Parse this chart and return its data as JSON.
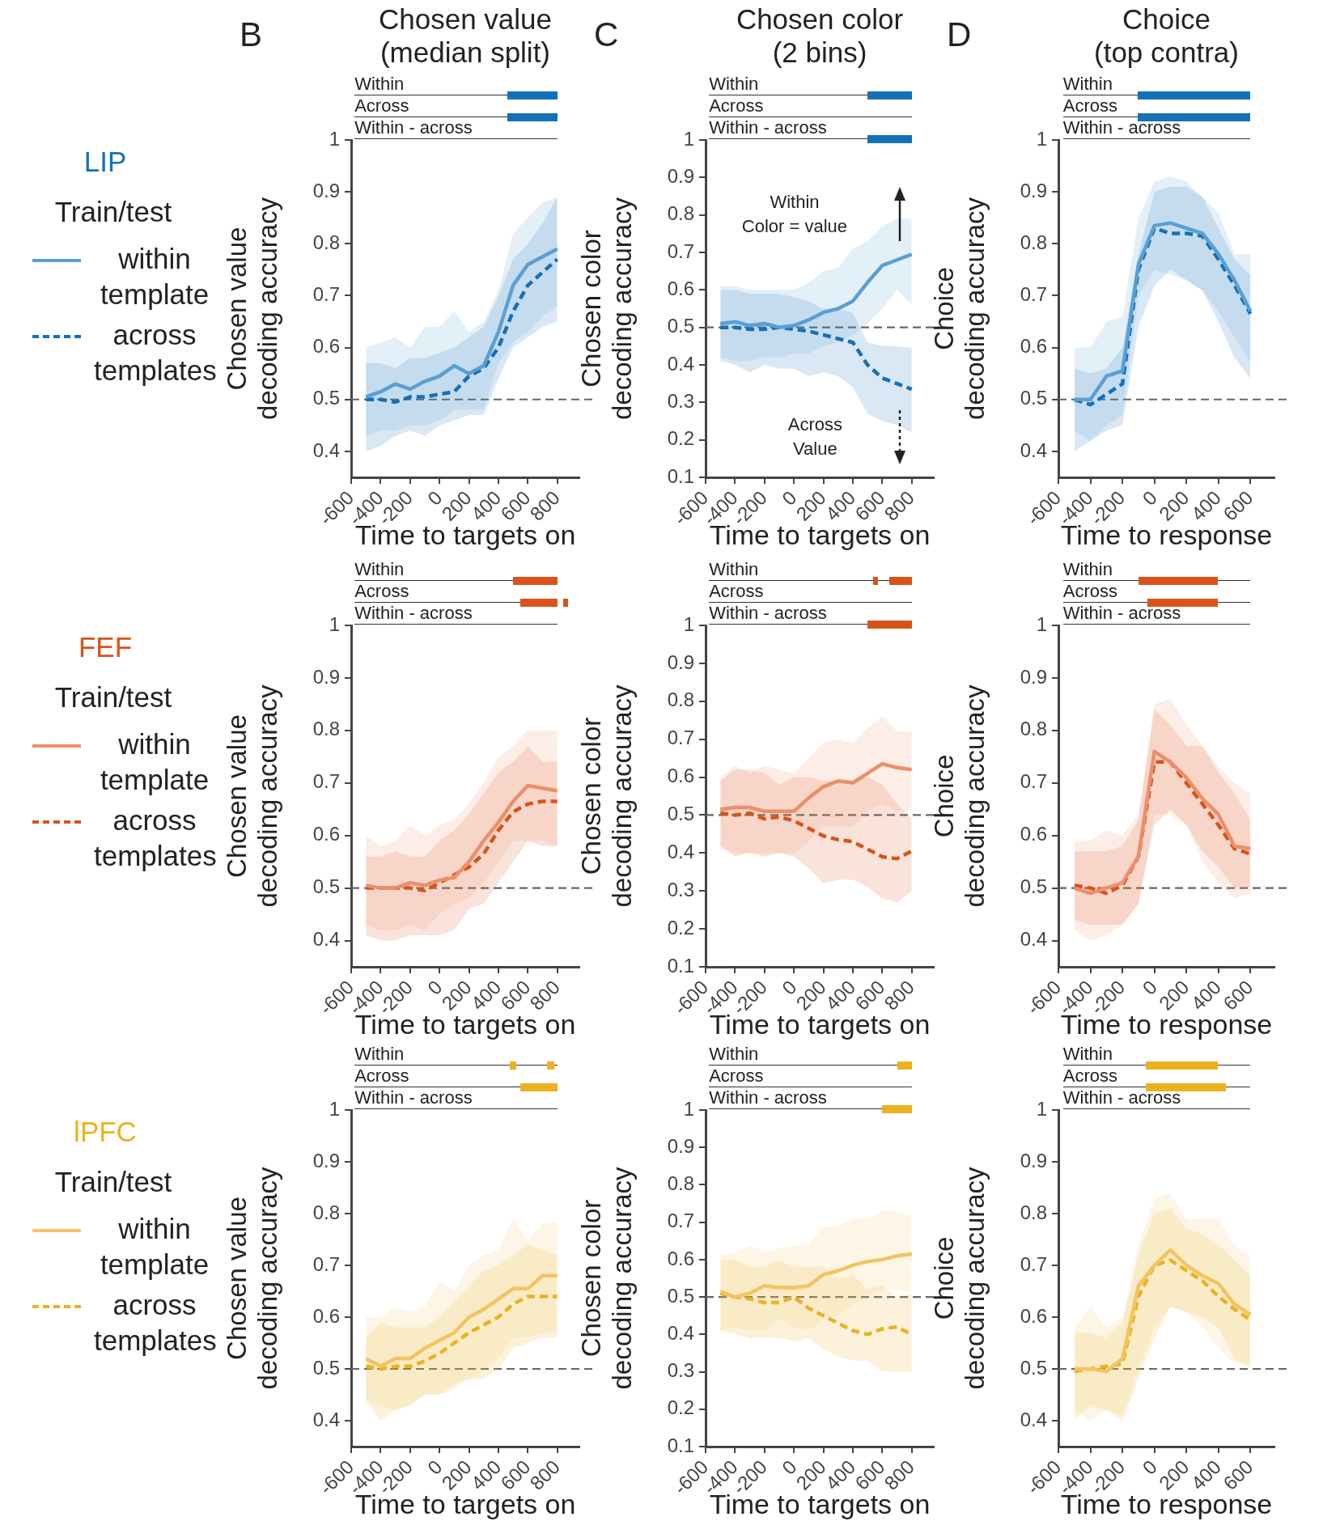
{
  "chart_data": [
    {
      "type": "line",
      "title": "Chosen value (median split)",
      "legend_title": "Train/test",
      "legend": "left",
      "annotations": [
        "B",
        "LIP",
        "Within",
        "Across",
        "Within - across"
      ],
      "xlabel": "Time to targets on",
      "ylabel": "Chosen value decoding accuracy",
      "marker": "none",
      "x": [
        -500,
        -400,
        -300,
        -200,
        -100,
        0,
        100,
        200,
        300,
        400,
        500,
        600,
        700,
        800
      ],
      "xlim": [
        -600,
        950
      ],
      "xticks": [
        -600,
        -400,
        -200,
        0,
        200,
        400,
        600,
        800
      ],
      "ylim": [
        0.35,
        1
      ],
      "yticks": [
        0.4,
        0.5,
        0.6,
        0.7,
        0.8,
        0.9,
        1
      ],
      "ref_lines": [
        {
          "axis": "y",
          "value": 0.5,
          "color": "#666666",
          "line_style": "dashed"
        }
      ],
      "series": [
        {
          "name": "within template",
          "color": "#5a9fd4",
          "line_style": "solid",
          "values": [
            0.505,
            0.515,
            0.53,
            0.52,
            0.535,
            0.545,
            0.565,
            0.55,
            0.565,
            0.63,
            0.72,
            0.76,
            0.775,
            0.79
          ],
          "upper": [
            0.6,
            0.61,
            0.62,
            0.6,
            0.64,
            0.64,
            0.67,
            0.63,
            0.65,
            0.71,
            0.82,
            0.85,
            0.88,
            0.89
          ],
          "lower": [
            0.43,
            0.44,
            0.44,
            0.45,
            0.45,
            0.46,
            0.48,
            0.48,
            0.48,
            0.57,
            0.61,
            0.63,
            0.66,
            0.68
          ]
        },
        {
          "name": "across templates",
          "color": "#1470b8",
          "line_style": "dashed",
          "values": [
            0.5,
            0.5,
            0.495,
            0.505,
            0.505,
            0.51,
            0.515,
            0.545,
            0.56,
            0.6,
            0.67,
            0.72,
            0.745,
            0.77
          ],
          "upper": [
            0.57,
            0.57,
            0.56,
            0.58,
            0.58,
            0.59,
            0.6,
            0.62,
            0.64,
            0.7,
            0.77,
            0.8,
            0.84,
            0.89
          ],
          "lower": [
            0.4,
            0.41,
            0.43,
            0.44,
            0.43,
            0.45,
            0.46,
            0.47,
            0.47,
            0.54,
            0.6,
            0.62,
            0.64,
            0.65
          ]
        }
      ]
    },
    {
      "type": "line",
      "title": "Chosen color (2 bins)",
      "annotations": [
        "C",
        "Within",
        "Across",
        "Within - across",
        "Within\nColor = value",
        "Across\nValue"
      ],
      "xlabel": "Time to targets on",
      "ylabel": "Chosen color decoding accuracy",
      "marker": "none",
      "x": [
        -500,
        -400,
        -300,
        -200,
        -100,
        0,
        100,
        200,
        300,
        400,
        500,
        600,
        700,
        800
      ],
      "xlim": [
        -600,
        950
      ],
      "xticks": [
        -600,
        -400,
        -200,
        0,
        200,
        400,
        600,
        800
      ],
      "ylim": [
        0.1,
        1
      ],
      "yticks": [
        0.1,
        0.2,
        0.3,
        0.4,
        0.5,
        0.6,
        0.7,
        0.8,
        0.9,
        1
      ],
      "ref_lines": [
        {
          "axis": "y",
          "value": 0.5,
          "color": "#666666",
          "line_style": "dashed"
        }
      ],
      "series": [
        {
          "color": "#5a9fd4",
          "line_style": "solid",
          "values": [
            0.51,
            0.515,
            0.505,
            0.51,
            0.5,
            0.505,
            0.52,
            0.54,
            0.55,
            0.57,
            0.62,
            0.665,
            0.68,
            0.695
          ],
          "upper": [
            0.61,
            0.61,
            0.6,
            0.6,
            0.6,
            0.6,
            0.62,
            0.65,
            0.66,
            0.71,
            0.73,
            0.77,
            0.79,
            0.79
          ],
          "lower": [
            0.42,
            0.41,
            0.41,
            0.42,
            0.42,
            0.43,
            0.43,
            0.45,
            0.46,
            0.48,
            0.51,
            0.55,
            0.6,
            0.56
          ]
        },
        {
          "color": "#1470b8",
          "line_style": "dashed",
          "values": [
            0.5,
            0.5,
            0.495,
            0.495,
            0.5,
            0.495,
            0.49,
            0.48,
            0.47,
            0.46,
            0.4,
            0.365,
            0.35,
            0.335
          ],
          "upper": [
            0.6,
            0.6,
            0.59,
            0.59,
            0.59,
            0.58,
            0.57,
            0.55,
            0.55,
            0.54,
            0.46,
            0.45,
            0.45,
            0.445
          ],
          "lower": [
            0.41,
            0.4,
            0.38,
            0.4,
            0.39,
            0.39,
            0.37,
            0.38,
            0.37,
            0.34,
            0.27,
            0.25,
            0.24,
            0.22
          ]
        }
      ]
    },
    {
      "type": "line",
      "title": "Choice (top contra)",
      "annotations": [
        "D",
        "Within",
        "Across",
        "Within - across"
      ],
      "xlabel": "Time to response",
      "ylabel": "Choice decoding accuracy",
      "marker": "none",
      "x": [
        -500,
        -400,
        -300,
        -200,
        -100,
        0,
        100,
        200,
        300,
        400,
        500,
        600
      ],
      "xlim": [
        -600,
        750
      ],
      "xticks": [
        -600,
        -400,
        -200,
        0,
        200,
        400,
        600
      ],
      "ylim": [
        0.35,
        1
      ],
      "yticks": [
        0.4,
        0.5,
        0.6,
        0.7,
        0.8,
        0.9,
        1
      ],
      "ref_lines": [
        {
          "axis": "y",
          "value": 0.5,
          "color": "#666666",
          "line_style": "dashed"
        }
      ],
      "series": [
        {
          "color": "#5a9fd4",
          "line_style": "solid",
          "values": [
            0.5,
            0.5,
            0.545,
            0.555,
            0.76,
            0.835,
            0.84,
            0.83,
            0.82,
            0.78,
            0.73,
            0.67
          ],
          "upper": [
            0.6,
            0.6,
            0.65,
            0.66,
            0.85,
            0.92,
            0.93,
            0.92,
            0.89,
            0.86,
            0.78,
            0.78
          ],
          "lower": [
            0.44,
            0.42,
            0.45,
            0.47,
            0.7,
            0.75,
            0.74,
            0.73,
            0.71,
            0.67,
            0.62,
            0.57
          ]
        },
        {
          "color": "#1470b8",
          "line_style": "dashed",
          "values": [
            0.5,
            0.49,
            0.51,
            0.53,
            0.75,
            0.83,
            0.82,
            0.82,
            0.815,
            0.77,
            0.72,
            0.665
          ],
          "upper": [
            0.56,
            0.55,
            0.56,
            0.6,
            0.78,
            0.9,
            0.91,
            0.91,
            0.89,
            0.83,
            0.77,
            0.74
          ],
          "lower": [
            0.4,
            0.42,
            0.44,
            0.45,
            0.64,
            0.72,
            0.75,
            0.73,
            0.71,
            0.65,
            0.58,
            0.54
          ]
        }
      ]
    },
    {
      "type": "line",
      "legend_title": "Train/test",
      "legend": "left",
      "annotations": [
        "FEF",
        "Within",
        "Across",
        "Within - across"
      ],
      "xlabel": "Time to targets on",
      "ylabel": "Chosen value decoding accuracy",
      "marker": "none",
      "x": [
        -500,
        -400,
        -300,
        -200,
        -100,
        0,
        100,
        200,
        300,
        400,
        500,
        600,
        700,
        800
      ],
      "xlim": [
        -600,
        950
      ],
      "xticks": [
        -600,
        -400,
        -200,
        0,
        200,
        400,
        600,
        800
      ],
      "ylim": [
        0.35,
        1
      ],
      "yticks": [
        0.4,
        0.5,
        0.6,
        0.7,
        0.8,
        0.9,
        1
      ],
      "ref_lines": [
        {
          "axis": "y",
          "value": 0.5,
          "color": "#666666",
          "line_style": "dashed"
        }
      ],
      "series": [
        {
          "name": "within template",
          "color": "#eb8f6a",
          "line_style": "solid",
          "values": [
            0.505,
            0.5,
            0.5,
            0.51,
            0.505,
            0.515,
            0.52,
            0.55,
            0.59,
            0.625,
            0.665,
            0.695,
            0.69,
            0.685
          ],
          "upper": [
            0.6,
            0.58,
            0.59,
            0.62,
            0.6,
            0.62,
            0.63,
            0.66,
            0.7,
            0.75,
            0.77,
            0.8,
            0.8,
            0.8
          ],
          "lower": [
            0.43,
            0.42,
            0.42,
            0.43,
            0.42,
            0.45,
            0.47,
            0.48,
            0.51,
            0.55,
            0.59,
            0.59,
            0.59,
            0.58
          ]
        },
        {
          "name": "across templates",
          "color": "#d95319",
          "line_style": "dashed",
          "values": [
            0.5,
            0.5,
            0.5,
            0.5,
            0.495,
            0.51,
            0.525,
            0.54,
            0.565,
            0.61,
            0.645,
            0.66,
            0.665,
            0.665
          ],
          "upper": [
            0.56,
            0.56,
            0.57,
            0.56,
            0.56,
            0.59,
            0.61,
            0.64,
            0.68,
            0.72,
            0.74,
            0.77,
            0.74,
            0.74
          ],
          "lower": [
            0.41,
            0.4,
            0.4,
            0.41,
            0.41,
            0.41,
            0.42,
            0.46,
            0.47,
            0.51,
            0.55,
            0.59,
            0.58,
            0.58
          ]
        }
      ]
    },
    {
      "type": "line",
      "annotations": [
        "Within",
        "Across",
        "Within - across"
      ],
      "xlabel": "Time to targets on",
      "ylabel": "Chosen color decoding accuracy",
      "marker": "none",
      "x": [
        -500,
        -400,
        -300,
        -200,
        -100,
        0,
        100,
        200,
        300,
        400,
        500,
        600,
        700,
        800
      ],
      "xlim": [
        -600,
        950
      ],
      "xticks": [
        -600,
        -400,
        -200,
        0,
        200,
        400,
        600,
        800
      ],
      "ylim": [
        0.1,
        1
      ],
      "yticks": [
        0.1,
        0.2,
        0.3,
        0.4,
        0.5,
        0.6,
        0.7,
        0.8,
        0.9,
        1
      ],
      "ref_lines": [
        {
          "axis": "y",
          "value": 0.5,
          "color": "#666666",
          "line_style": "dashed"
        }
      ],
      "series": [
        {
          "color": "#eb8f6a",
          "line_style": "solid",
          "values": [
            0.515,
            0.52,
            0.52,
            0.51,
            0.51,
            0.51,
            0.545,
            0.575,
            0.59,
            0.585,
            0.61,
            0.635,
            0.625,
            0.62
          ],
          "upper": [
            0.6,
            0.63,
            0.61,
            0.63,
            0.62,
            0.61,
            0.65,
            0.69,
            0.7,
            0.69,
            0.73,
            0.76,
            0.72,
            0.72
          ],
          "lower": [
            0.41,
            0.4,
            0.4,
            0.4,
            0.4,
            0.4,
            0.43,
            0.47,
            0.47,
            0.47,
            0.51,
            0.53,
            0.51,
            0.51
          ]
        },
        {
          "color": "#d95319",
          "line_style": "dashed",
          "values": [
            0.505,
            0.5,
            0.505,
            0.49,
            0.495,
            0.485,
            0.465,
            0.445,
            0.435,
            0.43,
            0.41,
            0.39,
            0.385,
            0.405
          ],
          "upper": [
            0.59,
            0.62,
            0.62,
            0.61,
            0.58,
            0.6,
            0.6,
            0.59,
            0.59,
            0.59,
            0.6,
            0.58,
            0.53,
            0.49
          ],
          "lower": [
            0.42,
            0.39,
            0.4,
            0.39,
            0.4,
            0.39,
            0.36,
            0.32,
            0.33,
            0.33,
            0.31,
            0.28,
            0.27,
            0.3
          ]
        }
      ]
    },
    {
      "type": "line",
      "annotations": [
        "Within",
        "Across",
        "Within - across"
      ],
      "xlabel": "Time to response",
      "ylabel": "Choice decoding accuracy",
      "marker": "none",
      "x": [
        -500,
        -400,
        -300,
        -200,
        -100,
        0,
        100,
        200,
        300,
        400,
        500,
        600
      ],
      "xlim": [
        -600,
        750
      ],
      "xticks": [
        -600,
        -400,
        -200,
        0,
        200,
        400,
        600
      ],
      "ylim": [
        0.35,
        1
      ],
      "yticks": [
        0.4,
        0.5,
        0.6,
        0.7,
        0.8,
        0.9,
        1
      ],
      "ref_lines": [
        {
          "axis": "y",
          "value": 0.5,
          "color": "#666666",
          "line_style": "dashed"
        }
      ],
      "series": [
        {
          "color": "#eb8f6a",
          "line_style": "solid",
          "values": [
            0.5,
            0.49,
            0.5,
            0.51,
            0.56,
            0.76,
            0.74,
            0.71,
            0.67,
            0.64,
            0.58,
            0.575
          ],
          "upper": [
            0.59,
            0.59,
            0.61,
            0.6,
            0.64,
            0.85,
            0.86,
            0.81,
            0.77,
            0.73,
            0.7,
            0.68
          ],
          "lower": [
            0.42,
            0.4,
            0.41,
            0.43,
            0.47,
            0.64,
            0.64,
            0.62,
            0.55,
            0.51,
            0.48,
            0.49
          ]
        },
        {
          "color": "#d95319",
          "line_style": "dashed",
          "values": [
            0.505,
            0.5,
            0.49,
            0.505,
            0.56,
            0.74,
            0.74,
            0.7,
            0.66,
            0.62,
            0.575,
            0.565
          ],
          "upper": [
            0.57,
            0.57,
            0.57,
            0.58,
            0.63,
            0.84,
            0.81,
            0.77,
            0.77,
            0.72,
            0.68,
            0.63
          ],
          "lower": [
            0.44,
            0.43,
            0.43,
            0.43,
            0.47,
            0.62,
            0.65,
            0.62,
            0.57,
            0.54,
            0.5,
            0.5
          ]
        }
      ]
    },
    {
      "type": "line",
      "legend_title": "Train/test",
      "legend": "left",
      "annotations": [
        "lPFC",
        "Within",
        "Across",
        "Within - across"
      ],
      "xlabel": "Time to targets on",
      "ylabel": "Chosen value decoding accuracy",
      "marker": "none",
      "x": [
        -500,
        -400,
        -300,
        -200,
        -100,
        0,
        100,
        200,
        300,
        400,
        500,
        600,
        700,
        800
      ],
      "xlim": [
        -600,
        950
      ],
      "xticks": [
        -600,
        -400,
        -200,
        0,
        200,
        400,
        600,
        800
      ],
      "ylim": [
        0.35,
        1
      ],
      "yticks": [
        0.4,
        0.5,
        0.6,
        0.7,
        0.8,
        0.9,
        1
      ],
      "ref_lines": [
        {
          "axis": "y",
          "value": 0.5,
          "color": "#666666",
          "line_style": "dashed"
        }
      ],
      "series": [
        {
          "name": "within template",
          "color": "#f2c461",
          "line_style": "solid",
          "values": [
            0.52,
            0.505,
            0.52,
            0.52,
            0.54,
            0.555,
            0.57,
            0.6,
            0.615,
            0.635,
            0.655,
            0.655,
            0.68,
            0.68
          ],
          "upper": [
            0.6,
            0.6,
            0.62,
            0.61,
            0.62,
            0.67,
            0.65,
            0.7,
            0.72,
            0.73,
            0.79,
            0.75,
            0.78,
            0.785
          ],
          "lower": [
            0.44,
            0.43,
            0.42,
            0.43,
            0.45,
            0.45,
            0.46,
            0.48,
            0.5,
            0.52,
            0.56,
            0.56,
            0.57,
            0.57
          ]
        },
        {
          "name": "across templates",
          "color": "#edb120",
          "line_style": "dashed",
          "values": [
            0.505,
            0.5,
            0.505,
            0.505,
            0.515,
            0.53,
            0.55,
            0.57,
            0.585,
            0.6,
            0.625,
            0.64,
            0.64,
            0.64
          ],
          "upper": [
            0.56,
            0.59,
            0.58,
            0.58,
            0.58,
            0.6,
            0.63,
            0.66,
            0.69,
            0.7,
            0.72,
            0.74,
            0.73,
            0.72
          ],
          "lower": [
            0.44,
            0.4,
            0.42,
            0.43,
            0.45,
            0.45,
            0.47,
            0.48,
            0.48,
            0.5,
            0.54,
            0.55,
            0.56,
            0.56
          ]
        }
      ]
    },
    {
      "type": "line",
      "annotations": [
        "Within",
        "Across",
        "Within - across"
      ],
      "xlabel": "Time to targets on",
      "ylabel": "Chosen color decoding accuracy",
      "marker": "none",
      "x": [
        -500,
        -400,
        -300,
        -200,
        -100,
        0,
        100,
        200,
        300,
        400,
        500,
        600,
        700,
        800
      ],
      "xlim": [
        -600,
        950
      ],
      "xticks": [
        -600,
        -400,
        -200,
        0,
        200,
        400,
        600,
        800
      ],
      "ylim": [
        0.1,
        1
      ],
      "yticks": [
        0.1,
        0.2,
        0.3,
        0.4,
        0.5,
        0.6,
        0.7,
        0.8,
        0.9,
        1
      ],
      "ref_lines": [
        {
          "axis": "y",
          "value": 0.5,
          "color": "#666666",
          "line_style": "dashed"
        }
      ],
      "series": [
        {
          "color": "#f2c461",
          "line_style": "solid",
          "values": [
            0.515,
            0.5,
            0.51,
            0.53,
            0.525,
            0.525,
            0.53,
            0.56,
            0.57,
            0.585,
            0.595,
            0.6,
            0.61,
            0.615
          ],
          "upper": [
            0.61,
            0.62,
            0.64,
            0.62,
            0.63,
            0.64,
            0.64,
            0.69,
            0.69,
            0.71,
            0.71,
            0.73,
            0.73,
            0.72
          ],
          "lower": [
            0.41,
            0.42,
            0.41,
            0.41,
            0.44,
            0.42,
            0.41,
            0.44,
            0.45,
            0.48,
            0.5,
            0.52,
            0.52,
            0.51
          ]
        },
        {
          "color": "#edb120",
          "line_style": "dashed",
          "values": [
            0.51,
            0.5,
            0.495,
            0.485,
            0.485,
            0.5,
            0.47,
            0.45,
            0.43,
            0.41,
            0.4,
            0.415,
            0.42,
            0.4
          ],
          "upper": [
            0.6,
            0.6,
            0.58,
            0.58,
            0.6,
            0.58,
            0.58,
            0.58,
            0.55,
            0.56,
            0.52,
            0.53,
            0.5,
            0.51
          ],
          "lower": [
            0.41,
            0.4,
            0.39,
            0.39,
            0.39,
            0.38,
            0.39,
            0.36,
            0.34,
            0.33,
            0.33,
            0.3,
            0.3,
            0.3
          ]
        }
      ]
    },
    {
      "type": "line",
      "annotations": [
        "Within",
        "Across",
        "Within - across"
      ],
      "xlabel": "Time to response",
      "ylabel": "Choice decoding accuracy",
      "marker": "none",
      "x": [
        -500,
        -400,
        -300,
        -200,
        -100,
        0,
        100,
        200,
        300,
        400,
        500,
        600
      ],
      "xlim": [
        -600,
        750
      ],
      "xticks": [
        -600,
        -400,
        -200,
        0,
        200,
        400,
        600
      ],
      "ylim": [
        0.35,
        1
      ],
      "yticks": [
        0.4,
        0.5,
        0.6,
        0.7,
        0.8,
        0.9,
        1
      ],
      "ref_lines": [
        {
          "axis": "y",
          "value": 0.5,
          "color": "#666666",
          "line_style": "dashed"
        }
      ],
      "series": [
        {
          "color": "#f2c461",
          "line_style": "solid",
          "values": [
            0.5,
            0.5,
            0.495,
            0.52,
            0.66,
            0.7,
            0.73,
            0.7,
            0.68,
            0.665,
            0.625,
            0.605
          ],
          "upper": [
            0.58,
            0.62,
            0.58,
            0.6,
            0.74,
            0.83,
            0.84,
            0.79,
            0.79,
            0.79,
            0.74,
            0.72
          ],
          "lower": [
            0.42,
            0.4,
            0.42,
            0.41,
            0.5,
            0.58,
            0.62,
            0.61,
            0.58,
            0.54,
            0.51,
            0.51
          ]
        },
        {
          "color": "#edb120",
          "line_style": "dashed",
          "values": [
            0.495,
            0.5,
            0.505,
            0.51,
            0.64,
            0.7,
            0.71,
            0.69,
            0.67,
            0.64,
            0.615,
            0.595
          ],
          "upper": [
            0.57,
            0.57,
            0.56,
            0.59,
            0.72,
            0.8,
            0.81,
            0.77,
            0.76,
            0.74,
            0.71,
            0.68
          ],
          "lower": [
            0.4,
            0.43,
            0.42,
            0.4,
            0.48,
            0.56,
            0.62,
            0.61,
            0.6,
            0.58,
            0.52,
            0.5
          ]
        }
      ]
    }
  ]
}
